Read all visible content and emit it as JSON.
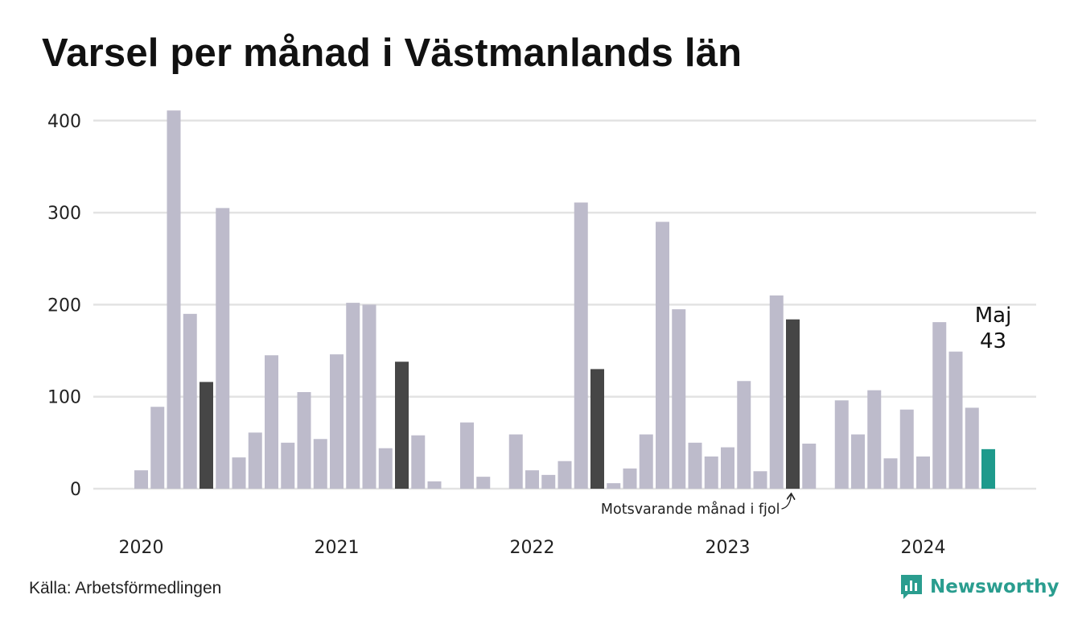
{
  "title": "Varsel per månad i Västmanlands län",
  "source": "Källa: Arbetsförmedlingen",
  "brand": "Newsworthy",
  "colors": {
    "bar": "#bdbbcb",
    "previous_year": "#464646",
    "current": "#1e9a8c",
    "grid": "#e3e3e3",
    "brand": "#2a9d8f"
  },
  "icons": {
    "brand": "chart-bubble-icon"
  },
  "chart_data": {
    "type": "bar",
    "title": "Varsel per månad i Västmanlands län",
    "xlabel": "",
    "ylabel": "",
    "ylim": [
      0,
      420
    ],
    "grid": true,
    "legend": "none",
    "y_ticks": [
      0,
      100,
      200,
      300,
      400
    ],
    "year_labels": [
      {
        "label": "2020",
        "index": 0
      },
      {
        "label": "2021",
        "index": 12
      },
      {
        "label": "2022",
        "index": 24
      },
      {
        "label": "2023",
        "index": 36
      },
      {
        "label": "2024",
        "index": 48
      }
    ],
    "categories": [
      "2020-01",
      "2020-02",
      "2020-03",
      "2020-04",
      "2020-05",
      "2020-06",
      "2020-07",
      "2020-08",
      "2020-09",
      "2020-10",
      "2020-11",
      "2020-12",
      "2021-01",
      "2021-02",
      "2021-03",
      "2021-04",
      "2021-05",
      "2021-06",
      "2021-07",
      "2021-08",
      "2021-09",
      "2021-10",
      "2021-11",
      "2021-12",
      "2022-01",
      "2022-02",
      "2022-03",
      "2022-04",
      "2022-05",
      "2022-06",
      "2022-07",
      "2022-08",
      "2022-09",
      "2022-10",
      "2022-11",
      "2022-12",
      "2023-01",
      "2023-02",
      "2023-03",
      "2023-04",
      "2023-05",
      "2023-06",
      "2023-07",
      "2023-08",
      "2023-09",
      "2023-10",
      "2023-11",
      "2023-12",
      "2024-01",
      "2024-02",
      "2024-03",
      "2024-04",
      "2024-05"
    ],
    "values": [
      20,
      89,
      411,
      190,
      116,
      305,
      34,
      61,
      145,
      50,
      105,
      54,
      146,
      202,
      200,
      44,
      138,
      58,
      8,
      0,
      72,
      13,
      0,
      59,
      20,
      15,
      30,
      311,
      130,
      6,
      22,
      59,
      290,
      195,
      50,
      35,
      45,
      117,
      19,
      210,
      184,
      49,
      0,
      96,
      59,
      107,
      33,
      86,
      35,
      181,
      149,
      88,
      43
    ],
    "highlight_previous_year": [
      4,
      16,
      28,
      40
    ],
    "highlight_current": 52,
    "annotations": {
      "previous_year": "Motsvarande månad i fjol",
      "current_month": "Maj",
      "current_value": "43"
    }
  }
}
